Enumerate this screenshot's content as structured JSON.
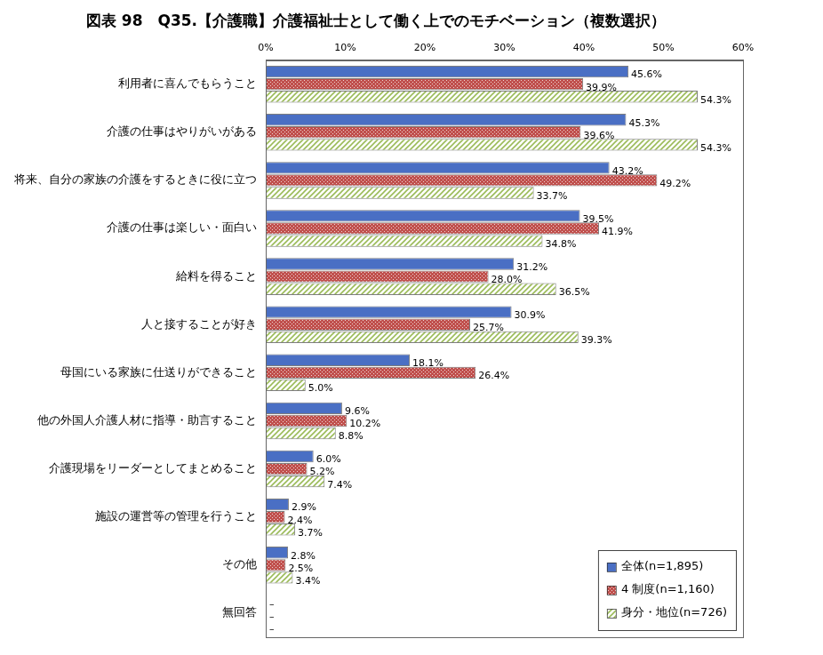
{
  "chart_data": {
    "type": "bar",
    "orientation": "horizontal",
    "title": "図表 98　Q35.【介護職】介護福祉士として働く上でのモチベーション（複数選択）",
    "categories": [
      "利用者に喜んでもらうこと",
      "介護の仕事はやりがいがある",
      "将来、自分の家族の介護をするときに役に立つ",
      "介護の仕事は楽しい・面白い",
      "給料を得ること",
      "人と接することが好き",
      "母国にいる家族に仕送りができること",
      "他の外国人介護人材に指導・助言すること",
      "介護現場をリーダーとしてまとめること",
      "施設の運営等の管理を行うこと",
      "その他",
      "無回答"
    ],
    "series": [
      {
        "name": "全体(n=1,895)",
        "color": "#4a6fc4",
        "values": [
          45.6,
          45.3,
          43.2,
          39.5,
          31.2,
          30.9,
          18.1,
          9.6,
          6.0,
          2.9,
          2.8,
          null
        ],
        "value_labels": [
          "45.6%",
          "45.3%",
          "43.2%",
          "39.5%",
          "31.2%",
          "30.9%",
          "18.1%",
          "9.6%",
          "6.0%",
          "2.9%",
          "2.8%",
          "–"
        ]
      },
      {
        "name": "4 制度(n=1,160)",
        "color": "#c0504d",
        "values": [
          39.9,
          39.6,
          49.2,
          41.9,
          28.0,
          25.7,
          26.4,
          10.2,
          5.2,
          2.4,
          2.5,
          null
        ],
        "value_labels": [
          "39.9%",
          "39.6%",
          "49.2%",
          "41.9%",
          "28.0%",
          "25.7%",
          "26.4%",
          "10.2%",
          "5.2%",
          "2.4%",
          "2.5%",
          "–"
        ]
      },
      {
        "name": "身分・地位(n=726)",
        "color": "#9bbb59",
        "values": [
          54.3,
          54.3,
          33.7,
          34.8,
          36.5,
          39.3,
          5.0,
          8.8,
          7.4,
          3.7,
          3.4,
          null
        ],
        "value_labels": [
          "54.3%",
          "54.3%",
          "33.7%",
          "34.8%",
          "36.5%",
          "39.3%",
          "5.0%",
          "8.8%",
          "7.4%",
          "3.7%",
          "3.4%",
          "–"
        ]
      }
    ],
    "xlim": [
      0,
      60
    ],
    "xticks": [
      {
        "value": 0,
        "label": "0%"
      },
      {
        "value": 10,
        "label": "10%"
      },
      {
        "value": 20,
        "label": "20%"
      },
      {
        "value": 30,
        "label": "30%"
      },
      {
        "value": 40,
        "label": "40%"
      },
      {
        "value": 50,
        "label": "50%"
      },
      {
        "value": 60,
        "label": "60%"
      }
    ],
    "grid": false,
    "legend": "lower right",
    "data_labels": true
  }
}
